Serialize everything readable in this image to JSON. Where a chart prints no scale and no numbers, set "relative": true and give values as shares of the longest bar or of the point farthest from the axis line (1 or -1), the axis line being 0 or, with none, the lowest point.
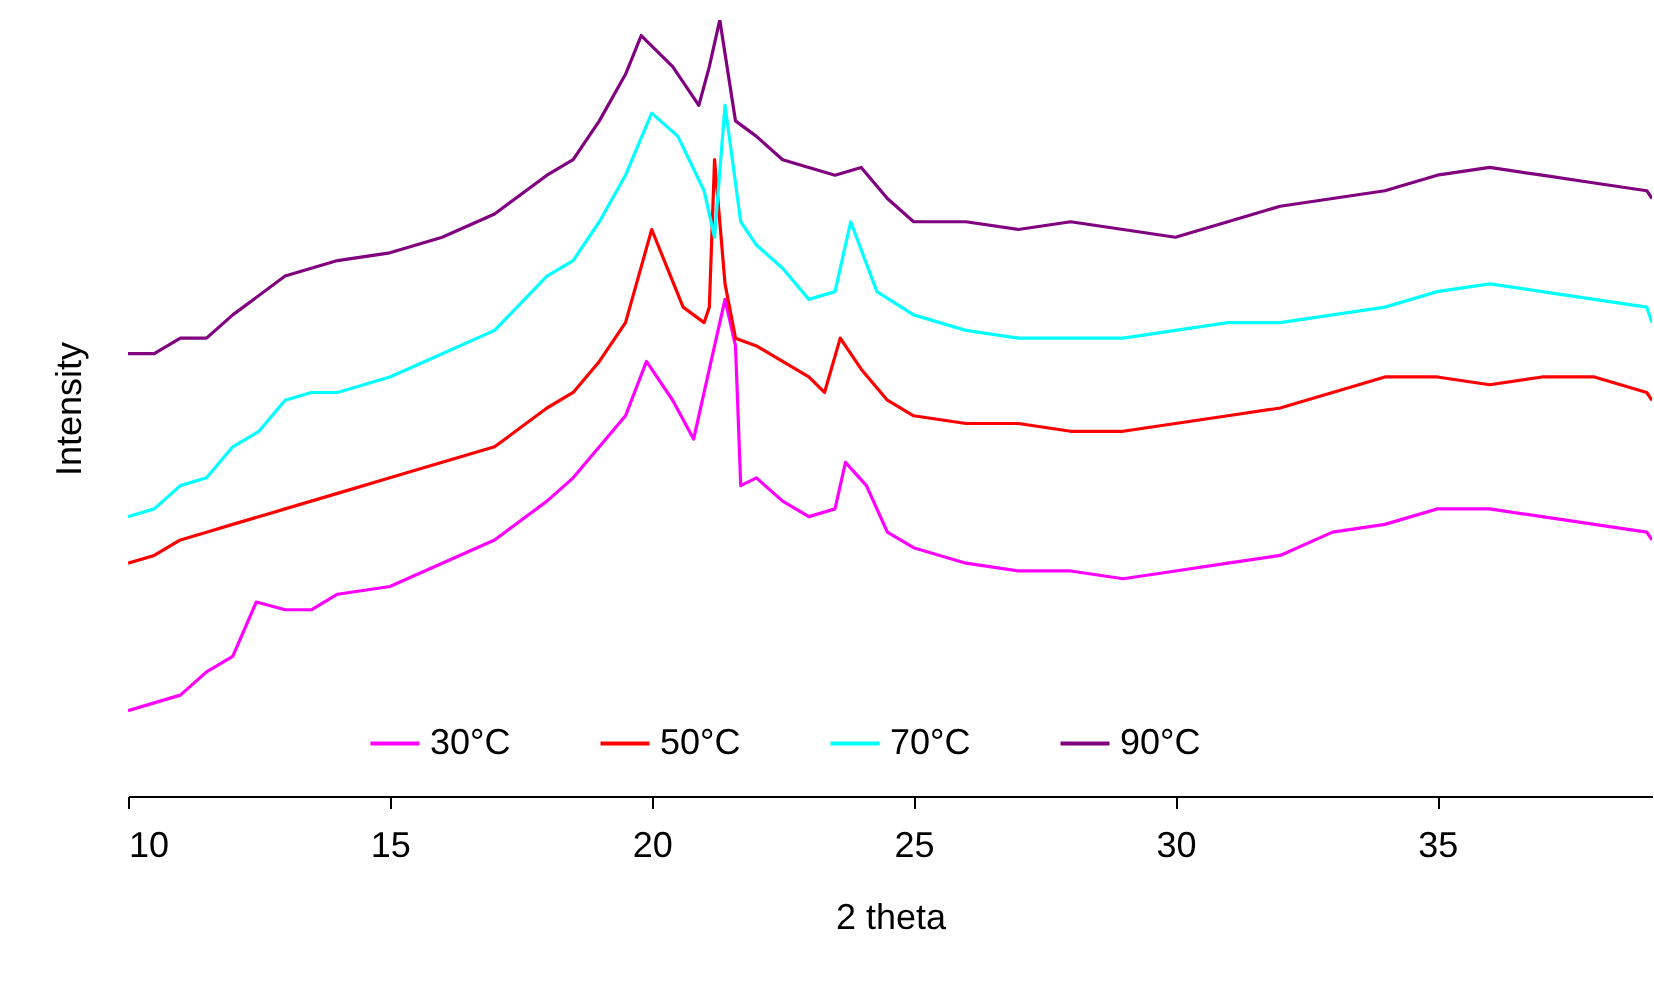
{
  "chart_data": {
    "type": "line",
    "xlabel": "2 theta",
    "ylabel": "Intensity",
    "relative": true,
    "xlim": [
      10,
      39.1
    ],
    "xticks": [
      10,
      15,
      20,
      25,
      30,
      35
    ],
    "legend": "bottom",
    "series": [
      {
        "name": "30°C",
        "color": "#ff00ff",
        "x": [
          10,
          10.5,
          11,
          11.5,
          12,
          12.45,
          13,
          13.5,
          14,
          15,
          16,
          17,
          18,
          18.5,
          19,
          19.5,
          19.9,
          20.4,
          20.8,
          21.1,
          21.4,
          21.6,
          21.7,
          22,
          22.5,
          23,
          23.5,
          23.7,
          24.1,
          24.5,
          25,
          26,
          27,
          28,
          29,
          30,
          31,
          32,
          33,
          34,
          35,
          36,
          37,
          38,
          39,
          39.1
        ],
        "values": [
          0.11,
          0.12,
          0.13,
          0.16,
          0.18,
          0.25,
          0.24,
          0.24,
          0.26,
          0.27,
          0.3,
          0.33,
          0.38,
          0.41,
          0.45,
          0.49,
          0.56,
          0.51,
          0.46,
          0.55,
          0.64,
          0.58,
          0.4,
          0.41,
          0.38,
          0.36,
          0.37,
          0.43,
          0.4,
          0.34,
          0.32,
          0.3,
          0.29,
          0.29,
          0.28,
          0.29,
          0.3,
          0.31,
          0.34,
          0.35,
          0.37,
          0.37,
          0.36,
          0.35,
          0.34,
          0.33
        ]
      },
      {
        "name": "50°C",
        "color": "#ff0000",
        "x": [
          10,
          10.5,
          11,
          11.5,
          12,
          13,
          14,
          15,
          16,
          17,
          18,
          18.5,
          19,
          19.5,
          20,
          20.3,
          20.6,
          21,
          21.1,
          21.2,
          21.4,
          21.6,
          22,
          22.5,
          23,
          23.3,
          23.6,
          24,
          24.5,
          25,
          26,
          27,
          28,
          29,
          30,
          31,
          32,
          33,
          34,
          35,
          36,
          37,
          38,
          39,
          39.1
        ],
        "values": [
          0.3,
          0.31,
          0.33,
          0.34,
          0.35,
          0.37,
          0.39,
          0.41,
          0.43,
          0.45,
          0.5,
          0.52,
          0.56,
          0.61,
          0.73,
          0.68,
          0.63,
          0.61,
          0.63,
          0.82,
          0.66,
          0.59,
          0.58,
          0.56,
          0.54,
          0.52,
          0.59,
          0.55,
          0.51,
          0.49,
          0.48,
          0.48,
          0.47,
          0.47,
          0.48,
          0.49,
          0.5,
          0.52,
          0.54,
          0.54,
          0.53,
          0.54,
          0.54,
          0.52,
          0.51
        ]
      },
      {
        "name": "70°C",
        "color": "#00ffff",
        "x": [
          10,
          10.5,
          11,
          11.5,
          12,
          12.5,
          13,
          13.5,
          14,
          15,
          16,
          17,
          18,
          18.5,
          19,
          19.5,
          20,
          20.5,
          21,
          21.2,
          21.4,
          21.7,
          22,
          22.5,
          23,
          23.5,
          23.8,
          24.3,
          25,
          26,
          27,
          28,
          29,
          30,
          31,
          32,
          33,
          34,
          35,
          36,
          37,
          38,
          39,
          39.1
        ],
        "values": [
          0.36,
          0.37,
          0.4,
          0.41,
          0.45,
          0.47,
          0.51,
          0.52,
          0.52,
          0.54,
          0.57,
          0.6,
          0.67,
          0.69,
          0.74,
          0.8,
          0.88,
          0.85,
          0.78,
          0.72,
          0.89,
          0.74,
          0.71,
          0.68,
          0.64,
          0.65,
          0.74,
          0.65,
          0.62,
          0.6,
          0.59,
          0.59,
          0.59,
          0.6,
          0.61,
          0.61,
          0.62,
          0.63,
          0.65,
          0.66,
          0.65,
          0.64,
          0.63,
          0.61
        ]
      },
      {
        "name": "90°C",
        "color": "#800080",
        "x": [
          10,
          10.5,
          11,
          11.5,
          12,
          13,
          14,
          15,
          16,
          17,
          18,
          18.5,
          19,
          19.5,
          19.8,
          20.4,
          20.9,
          21.1,
          21.3,
          21.6,
          22,
          22.5,
          23,
          23.5,
          24,
          24.5,
          25,
          26,
          27,
          28,
          29,
          30,
          31,
          32,
          33,
          34,
          35,
          36,
          37,
          38,
          39,
          39.1
        ],
        "values": [
          0.57,
          0.57,
          0.59,
          0.59,
          0.62,
          0.67,
          0.69,
          0.7,
          0.72,
          0.75,
          0.8,
          0.82,
          0.87,
          0.93,
          0.98,
          0.94,
          0.89,
          0.94,
          1,
          0.87,
          0.85,
          0.82,
          0.81,
          0.8,
          0.81,
          0.77,
          0.74,
          0.74,
          0.73,
          0.74,
          0.73,
          0.72,
          0.74,
          0.76,
          0.77,
          0.78,
          0.8,
          0.81,
          0.8,
          0.79,
          0.78,
          0.77
        ]
      }
    ]
  }
}
